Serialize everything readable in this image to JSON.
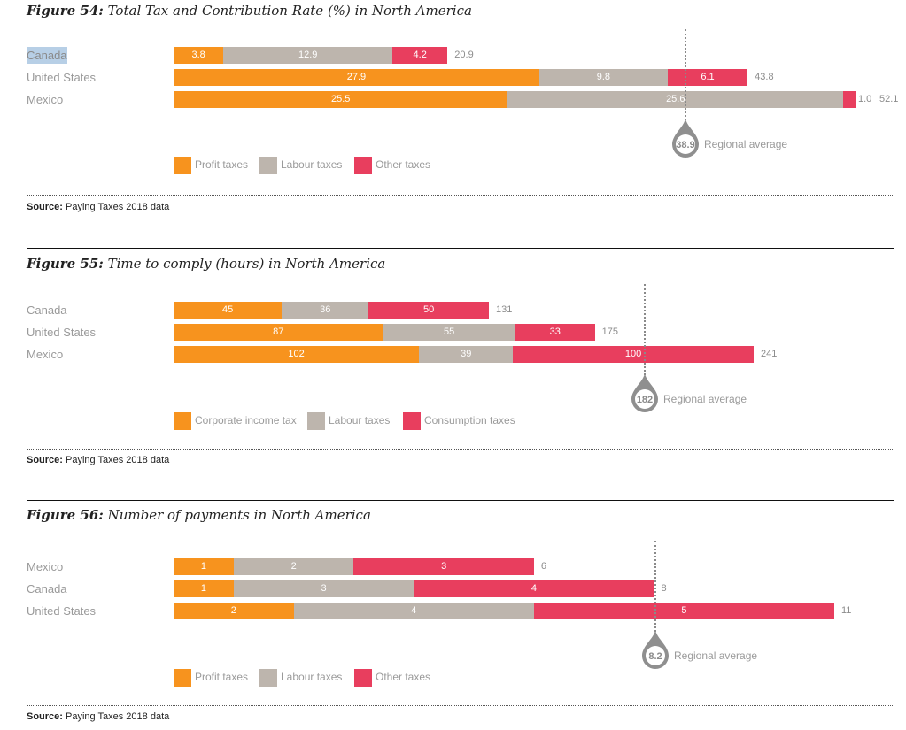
{
  "colors": {
    "orange": "#F7931E",
    "gray": "#BDB5AD",
    "pink": "#E83E5E"
  },
  "chart_data": [
    {
      "type": "bar",
      "orientation": "horizontal",
      "stacked": true,
      "figure_label": "Figure 54:",
      "title": "Total Tax and Contribution Rate (%) in North America",
      "categories": [
        "Canada",
        "United States",
        "Mexico"
      ],
      "series": [
        {
          "name": "Profit taxes",
          "color": "#F7931E",
          "values": [
            3.8,
            27.9,
            25.5
          ]
        },
        {
          "name": "Labour taxes",
          "color": "#BDB5AD",
          "values": [
            12.9,
            9.8,
            25.6
          ]
        },
        {
          "name": "Other taxes",
          "color": "#E83E5E",
          "values": [
            4.2,
            6.1,
            1.0
          ]
        }
      ],
      "segment_labels": [
        [
          "3.8",
          "12.9",
          "4.2"
        ],
        [
          "27.9",
          "9.8",
          "6.1"
        ],
        [
          "25.5",
          "25.6",
          "1.0"
        ]
      ],
      "totals": [
        "20.9",
        "43.8",
        "52.1"
      ],
      "total_values": [
        20.9,
        43.8,
        52.1
      ],
      "regional_average": {
        "value": 38.9,
        "label": "38.9",
        "text": "Regional average"
      },
      "xlim": [
        0,
        52.1
      ],
      "legend": [
        "Profit taxes",
        "Labour taxes",
        "Other taxes"
      ],
      "legend_position": "bottom-left",
      "source_label": "Source:",
      "source_text": " Paying Taxes 2018 data",
      "highlighted_category": "Canada"
    },
    {
      "type": "bar",
      "orientation": "horizontal",
      "stacked": true,
      "figure_label": "Figure 55:",
      "title": "Time to comply (hours) in North America",
      "categories": [
        "Canada",
        "United States",
        "Mexico"
      ],
      "series": [
        {
          "name": "Corporate income tax",
          "color": "#F7931E",
          "values": [
            45,
            87,
            102
          ]
        },
        {
          "name": "Labour taxes",
          "color": "#BDB5AD",
          "values": [
            36,
            55,
            39
          ]
        },
        {
          "name": "Consumption taxes",
          "color": "#E83E5E",
          "values": [
            50,
            33,
            100
          ]
        }
      ],
      "segment_labels": [
        [
          "45",
          "36",
          "50"
        ],
        [
          "87",
          "55",
          "33"
        ],
        [
          "102",
          "39",
          "100"
        ]
      ],
      "totals": [
        "131",
        "175",
        "241"
      ],
      "total_values": [
        131,
        175,
        241
      ],
      "regional_average": {
        "value": 182,
        "label": "182",
        "text": "Regional average"
      },
      "xlim": [
        0,
        241
      ],
      "legend": [
        "Corporate income tax",
        "Labour taxes",
        "Consumption taxes"
      ],
      "legend_position": "bottom-left",
      "source_label": "Source:",
      "source_text": " Paying Taxes 2018 data"
    },
    {
      "type": "bar",
      "orientation": "horizontal",
      "stacked": true,
      "figure_label": "Figure 56:",
      "title": "Number of payments in North America",
      "categories": [
        "Mexico",
        "Canada",
        "United States"
      ],
      "series": [
        {
          "name": "Profit taxes",
          "color": "#F7931E",
          "values": [
            1,
            1,
            2
          ]
        },
        {
          "name": "Labour taxes",
          "color": "#BDB5AD",
          "values": [
            2,
            3,
            4
          ]
        },
        {
          "name": "Other taxes",
          "color": "#E83E5E",
          "values": [
            3,
            4,
            5
          ]
        }
      ],
      "segment_labels": [
        [
          "1",
          "2",
          "3"
        ],
        [
          "1",
          "3",
          "4"
        ],
        [
          "2",
          "4",
          "5"
        ]
      ],
      "totals": [
        "6",
        "8",
        "11"
      ],
      "total_values": [
        6,
        8,
        11
      ],
      "regional_average": {
        "value": 8.2,
        "label": "8.2",
        "text": "Regional average"
      },
      "xlim": [
        0,
        11
      ],
      "legend": [
        "Profit taxes",
        "Labour taxes",
        "Other taxes"
      ],
      "legend_position": "bottom-left",
      "source_label": "Source:",
      "source_text": " Paying Taxes 2018 data"
    }
  ]
}
